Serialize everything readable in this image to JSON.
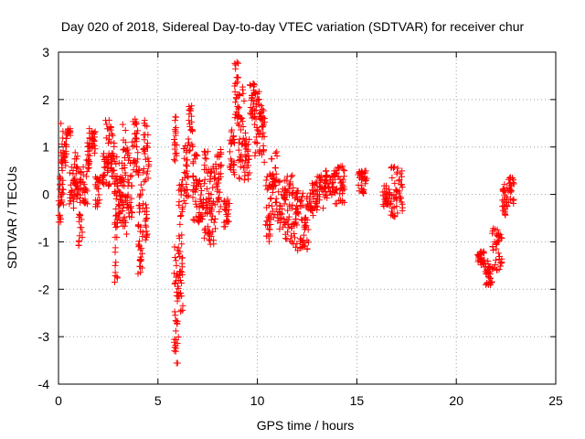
{
  "chart_data": {
    "type": "scatter",
    "title": "Day 020 of 2018, Sidereal Day-to-day VTEC variation (SDTVAR) for receiver chur",
    "xlabel": "GPS time / hours",
    "ylabel": "SDTVAR / TECUs",
    "xlim": [
      0,
      25
    ],
    "ylim": [
      -4,
      3
    ],
    "xticks": [
      "0",
      "5",
      "10",
      "15",
      "20",
      "25"
    ],
    "yticks": [
      "-4",
      "-3",
      "-2",
      "-1",
      "0",
      "1",
      "2",
      "3"
    ],
    "grid": true,
    "marker": "+",
    "series": [
      {
        "name": "SDTVAR",
        "color": "#ff0000",
        "segments": [
          {
            "t0": 0.0,
            "t1": 0.12,
            "y0": -0.6,
            "y1": 0.5
          },
          {
            "t0": 0.12,
            "t1": 0.25,
            "y0": -0.3,
            "y1": 1.5
          },
          {
            "t0": 0.25,
            "t1": 0.4,
            "y0": 0.6,
            "y1": 1.2
          },
          {
            "t0": 0.4,
            "t1": 0.6,
            "y0": 1.2,
            "y1": 1.4
          },
          {
            "t0": 0.55,
            "t1": 0.8,
            "y0": -0.3,
            "y1": 0.6
          },
          {
            "t0": 0.8,
            "t1": 1.0,
            "y0": -0.1,
            "y1": 0.9
          },
          {
            "t0": 1.0,
            "t1": 1.2,
            "y0": -1.1,
            "y1": 0.5
          },
          {
            "t0": 1.2,
            "t1": 1.45,
            "y0": -0.2,
            "y1": 0.6
          },
          {
            "t0": 1.4,
            "t1": 1.6,
            "y0": 0.5,
            "y1": 1.1
          },
          {
            "t0": 1.55,
            "t1": 1.85,
            "y0": 0.8,
            "y1": 1.4
          },
          {
            "t0": 1.85,
            "t1": 2.1,
            "y0": -0.3,
            "y1": 0.4
          },
          {
            "t0": 2.2,
            "t1": 2.35,
            "y0": 0.2,
            "y1": 0.9
          },
          {
            "t0": 2.35,
            "t1": 2.65,
            "y0": 0.1,
            "y1": 1.6
          },
          {
            "t0": 2.65,
            "t1": 2.8,
            "y0": 0.3,
            "y1": 1.3
          },
          {
            "t0": 2.8,
            "t1": 3.0,
            "y0": -1.9,
            "y1": 0.8
          },
          {
            "t0": 3.0,
            "t1": 3.2,
            "y0": -0.6,
            "y1": 0.7
          },
          {
            "t0": 3.2,
            "t1": 3.45,
            "y0": -0.9,
            "y1": 1.5
          },
          {
            "t0": 3.45,
            "t1": 3.7,
            "y0": -0.5,
            "y1": 1.0
          },
          {
            "t0": 3.7,
            "t1": 4.0,
            "y0": 0.4,
            "y1": 1.6
          },
          {
            "t0": 4.0,
            "t1": 4.25,
            "y0": -1.7,
            "y1": 0.6
          },
          {
            "t0": 4.25,
            "t1": 4.55,
            "y0": -1.1,
            "y1": 1.6
          },
          {
            "t0": 5.8,
            "t1": 5.95,
            "y0": 0.7,
            "y1": 1.7
          },
          {
            "t0": 5.8,
            "t1": 6.05,
            "y0": -3.7,
            "y1": -1.0
          },
          {
            "t0": 6.05,
            "t1": 6.25,
            "y0": -2.5,
            "y1": 0.5
          },
          {
            "t0": 6.3,
            "t1": 6.55,
            "y0": -0.2,
            "y1": 1.2
          },
          {
            "t0": 6.55,
            "t1": 6.75,
            "y0": 0.9,
            "y1": 1.9
          },
          {
            "t0": 6.75,
            "t1": 7.0,
            "y0": -0.7,
            "y1": 0.9
          },
          {
            "t0": 7.0,
            "t1": 7.3,
            "y0": -0.6,
            "y1": 0.3
          },
          {
            "t0": 7.3,
            "t1": 7.6,
            "y0": -1.0,
            "y1": 1.0
          },
          {
            "t0": 7.6,
            "t1": 7.9,
            "y0": -1.1,
            "y1": 0.6
          },
          {
            "t0": 7.9,
            "t1": 8.2,
            "y0": -0.4,
            "y1": 1.0
          },
          {
            "t0": 8.3,
            "t1": 8.6,
            "y0": -0.8,
            "y1": -0.1
          },
          {
            "t0": 8.6,
            "t1": 8.85,
            "y0": 0.4,
            "y1": 1.4
          },
          {
            "t0": 8.85,
            "t1": 9.05,
            "y0": 1.4,
            "y1": 2.8
          },
          {
            "t0": 9.05,
            "t1": 9.35,
            "y0": 0.3,
            "y1": 2.3
          },
          {
            "t0": 9.35,
            "t1": 9.6,
            "y0": 0.3,
            "y1": 1.3
          },
          {
            "t0": 9.6,
            "t1": 9.85,
            "y0": 1.6,
            "y1": 2.4
          },
          {
            "t0": 9.85,
            "t1": 10.1,
            "y0": 0.8,
            "y1": 2.2
          },
          {
            "t0": 10.1,
            "t1": 10.4,
            "y0": 0.6,
            "y1": 1.9
          },
          {
            "t0": 10.4,
            "t1": 10.7,
            "y0": -1.0,
            "y1": 0.5
          },
          {
            "t0": 10.7,
            "t1": 11.0,
            "y0": -0.5,
            "y1": 0.9
          },
          {
            "t0": 11.0,
            "t1": 11.4,
            "y0": -0.8,
            "y1": 0.3
          },
          {
            "t0": 11.4,
            "t1": 11.8,
            "y0": -1.1,
            "y1": 0.4
          },
          {
            "t0": 11.8,
            "t1": 12.2,
            "y0": -1.3,
            "y1": 0.2
          },
          {
            "t0": 12.2,
            "t1": 12.6,
            "y0": -1.2,
            "y1": 0.1
          },
          {
            "t0": 12.6,
            "t1": 13.0,
            "y0": -0.5,
            "y1": 0.3
          },
          {
            "t0": 13.0,
            "t1": 13.4,
            "y0": -0.3,
            "y1": 0.4
          },
          {
            "t0": 13.4,
            "t1": 13.9,
            "y0": -0.1,
            "y1": 0.5
          },
          {
            "t0": 13.9,
            "t1": 14.4,
            "y0": -0.2,
            "y1": 0.6
          },
          {
            "t0": 15.0,
            "t1": 15.5,
            "y0": 0.0,
            "y1": 0.5
          },
          {
            "t0": 16.3,
            "t1": 16.7,
            "y0": -0.3,
            "y1": 0.2
          },
          {
            "t0": 16.7,
            "t1": 17.3,
            "y0": -0.5,
            "y1": 0.6
          },
          {
            "t0": 21.0,
            "t1": 21.4,
            "y0": -1.5,
            "y1": -1.2
          },
          {
            "t0": 21.4,
            "t1": 21.8,
            "y0": -2.0,
            "y1": -1.4
          },
          {
            "t0": 21.8,
            "t1": 22.3,
            "y0": -1.6,
            "y1": -0.7
          },
          {
            "t0": 22.3,
            "t1": 22.6,
            "y0": -0.5,
            "y1": 0.3
          },
          {
            "t0": 22.6,
            "t1": 22.9,
            "y0": -0.2,
            "y1": 0.4
          }
        ]
      }
    ]
  }
}
